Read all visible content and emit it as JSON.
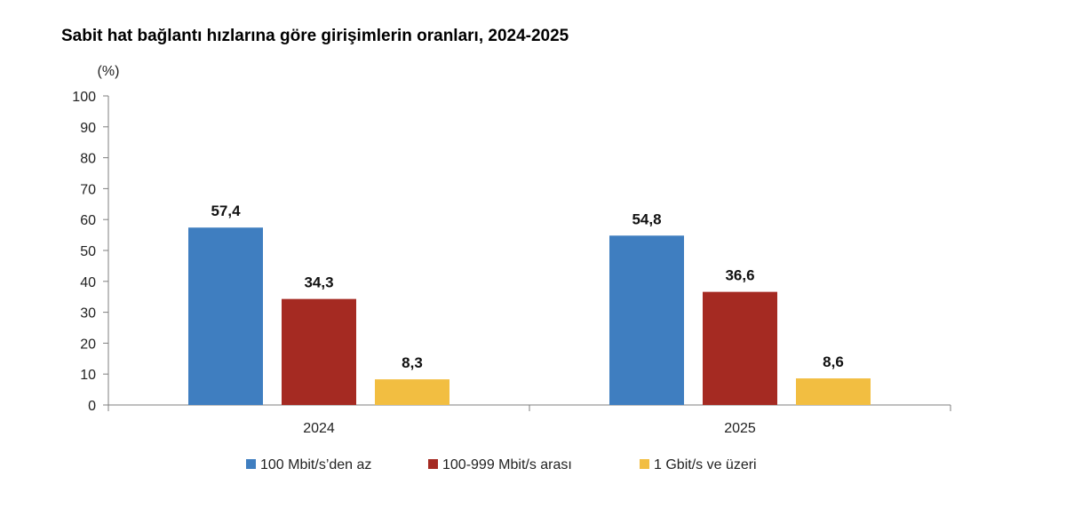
{
  "chart_data": {
    "type": "bar",
    "title": "Sabit hat bağlantı hızlarına göre girişimlerin oranları, 2024-2025",
    "ylabel": "(%)",
    "xlabel": "",
    "ylim": [
      0,
      100
    ],
    "yticks": [
      "0",
      "10",
      "20",
      "30",
      "40",
      "50",
      "60",
      "70",
      "80",
      "90",
      "100"
    ],
    "categories": [
      "2024",
      "2025"
    ],
    "legend_position": "bottom",
    "grid": false,
    "series": [
      {
        "name": "100 Mbit/s’den az",
        "color": "#3F7EC0",
        "values": [
          57.4,
          54.8
        ],
        "labels": [
          "57,4",
          "54,8"
        ]
      },
      {
        "name": "100-999 Mbit/s arası",
        "color": "#A52A22",
        "values": [
          34.3,
          36.6
        ],
        "labels": [
          "34,3",
          "36,6"
        ]
      },
      {
        "name": "1 Gbit/s ve üzeri",
        "color": "#F2BE41",
        "values": [
          8.3,
          8.6
        ],
        "labels": [
          "8,3",
          "8,6"
        ]
      }
    ]
  }
}
